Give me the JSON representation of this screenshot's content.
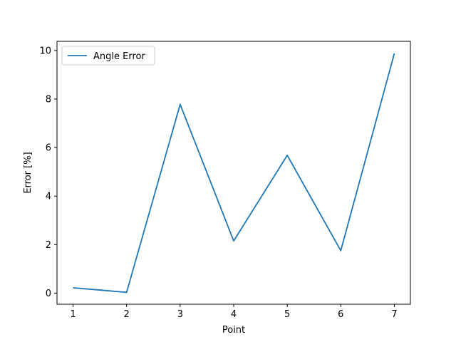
{
  "chart_data": {
    "type": "line",
    "title": "",
    "xlabel": "Point",
    "ylabel": "Error [%]",
    "x": [
      1,
      2,
      3,
      4,
      5,
      6,
      7
    ],
    "series": [
      {
        "name": "Angle Error",
        "color": "#1f77b4",
        "values": [
          0.22,
          0.03,
          7.78,
          2.15,
          5.68,
          1.75,
          9.88
        ]
      }
    ],
    "xlim": [
      0.7,
      7.3
    ],
    "ylim": [
      -0.46,
      10.38
    ],
    "xticks": [
      1,
      2,
      3,
      4,
      5,
      6,
      7
    ],
    "xtick_labels": [
      "1",
      "2",
      "3",
      "4",
      "5",
      "6",
      "7"
    ],
    "yticks": [
      0,
      2,
      4,
      6,
      8,
      10
    ],
    "ytick_labels": [
      "0",
      "2",
      "4",
      "6",
      "8",
      "10"
    ],
    "grid": false,
    "legend_position": "top-left"
  }
}
